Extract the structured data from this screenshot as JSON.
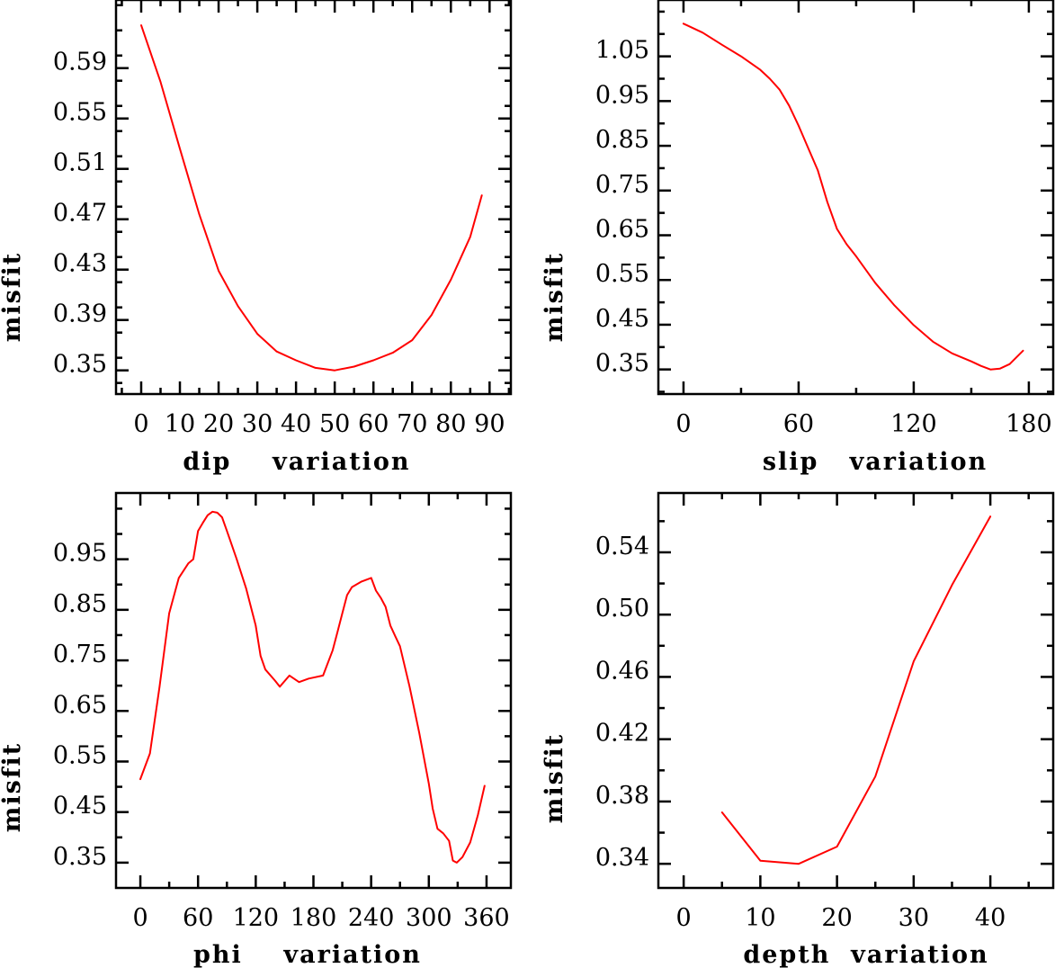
{
  "figure": {
    "description": "Four-panel misfit variation plots"
  },
  "chart_data": [
    {
      "type": "line",
      "id": "dip",
      "title": "",
      "xlabel": "dip    variation",
      "ylabel": "misfit",
      "xlim": [
        -6.5,
        95.5
      ],
      "ylim": [
        0.3312,
        0.6441
      ],
      "xticks": [
        0,
        10,
        20,
        30,
        40,
        50,
        60,
        70,
        80,
        90
      ],
      "xtick_labels": [
        "0",
        "10",
        "20",
        "30",
        "40",
        "50",
        "60",
        "70",
        "80",
        "90"
      ],
      "xminor_step": 5,
      "yticks": [
        0.35,
        0.39,
        0.43,
        0.47,
        0.51,
        0.55,
        0.59
      ],
      "ytick_labels": [
        "0.35",
        "0.39",
        "0.43",
        "0.47",
        "0.51",
        "0.55",
        "0.59"
      ],
      "yminor_step": 0.02,
      "grid": false,
      "series": [
        {
          "name": "misfit",
          "color": "#ff0000",
          "x": [
            0,
            5,
            10,
            15,
            20,
            25,
            30,
            35,
            40,
            45,
            50,
            55,
            60,
            65,
            70,
            75,
            80,
            85,
            88
          ],
          "y": [
            0.624,
            0.579,
            0.526,
            0.474,
            0.429,
            0.401,
            0.379,
            0.365,
            0.358,
            0.352,
            0.35,
            0.353,
            0.358,
            0.364,
            0.374,
            0.394,
            0.422,
            0.456,
            0.489
          ]
        }
      ]
    },
    {
      "type": "line",
      "id": "slip",
      "title": "",
      "xlabel": "slip   variation",
      "ylabel": "misfit",
      "xlim": [
        -13.1,
        192.7
      ],
      "ylim": [
        0.295,
        1.176
      ],
      "xticks": [
        0,
        60,
        120,
        180
      ],
      "xtick_labels": [
        "0",
        "60",
        "120",
        "180"
      ],
      "xminor_step": 30,
      "yticks": [
        0.35,
        0.45,
        0.55,
        0.65,
        0.75,
        0.85,
        0.95,
        1.05
      ],
      "ytick_labels": [
        "0.35",
        "0.45",
        "0.55",
        "0.65",
        "0.75",
        "0.85",
        "0.95",
        "1.05"
      ],
      "yminor_step": 0.05,
      "grid": false,
      "series": [
        {
          "name": "misfit",
          "color": "#ff0000",
          "x": [
            0,
            10,
            20,
            30,
            40,
            45,
            50,
            55,
            60,
            65,
            70,
            75,
            80,
            85,
            90,
            100,
            110,
            120,
            130,
            140,
            150,
            155,
            160,
            165,
            170,
            177
          ],
          "y": [
            1.123,
            1.103,
            1.076,
            1.05,
            1.02,
            1.0,
            0.976,
            0.94,
            0.895,
            0.845,
            0.795,
            0.724,
            0.664,
            0.63,
            0.603,
            0.543,
            0.493,
            0.449,
            0.412,
            0.386,
            0.368,
            0.358,
            0.35,
            0.352,
            0.362,
            0.392
          ]
        }
      ]
    },
    {
      "type": "line",
      "id": "phi",
      "title": "",
      "xlabel": "phi    variation",
      "ylabel": "misfit",
      "xlim": [
        -25.3,
        385.3
      ],
      "ylim": [
        0.3,
        1.081
      ],
      "xticks": [
        0,
        60,
        120,
        180,
        240,
        300,
        360
      ],
      "xtick_labels": [
        "0",
        "60",
        "120",
        "180",
        "240",
        "300",
        "360"
      ],
      "xminor_step": 30,
      "yticks": [
        0.35,
        0.45,
        0.55,
        0.65,
        0.75,
        0.85,
        0.95
      ],
      "ytick_labels": [
        "0.35",
        "0.45",
        "0.55",
        "0.65",
        "0.75",
        "0.85",
        "0.95"
      ],
      "yminor_step": 0.05,
      "grid": false,
      "series": [
        {
          "name": "misfit",
          "color": "#ff0000",
          "x": [
            0,
            10,
            20,
            30,
            40,
            50,
            55,
            60,
            65,
            70,
            75,
            80,
            85,
            90,
            100,
            110,
            120,
            125,
            130,
            140,
            145,
            155,
            165,
            175,
            180,
            190,
            200,
            205,
            210,
            215,
            220,
            230,
            240,
            245,
            250,
            255,
            260,
            265,
            270,
            280,
            290,
            300,
            304,
            309,
            315,
            321,
            325,
            329,
            335,
            343,
            351,
            358
          ],
          "y": [
            0.515,
            0.566,
            0.698,
            0.843,
            0.913,
            0.942,
            0.95,
            1.006,
            1.022,
            1.037,
            1.044,
            1.042,
            1.033,
            1.006,
            0.951,
            0.892,
            0.819,
            0.759,
            0.732,
            0.71,
            0.698,
            0.72,
            0.707,
            0.714,
            0.716,
            0.72,
            0.77,
            0.806,
            0.843,
            0.879,
            0.895,
            0.906,
            0.913,
            0.888,
            0.874,
            0.856,
            0.819,
            0.798,
            0.778,
            0.698,
            0.607,
            0.506,
            0.457,
            0.417,
            0.408,
            0.393,
            0.354,
            0.35,
            0.361,
            0.39,
            0.444,
            0.502
          ]
        }
      ]
    },
    {
      "type": "line",
      "id": "depth",
      "title": "",
      "xlabel": "depth  variation",
      "ylabel": "misfit",
      "xlim": [
        -3.3,
        48.2
      ],
      "ylim": [
        0.3245,
        0.5781
      ],
      "xticks": [
        0,
        10,
        20,
        30,
        40
      ],
      "xtick_labels": [
        "0",
        "10",
        "20",
        "30",
        "40"
      ],
      "xminor_step": 5,
      "yticks": [
        0.34,
        0.38,
        0.42,
        0.46,
        0.5,
        0.54
      ],
      "ytick_labels": [
        "0.34",
        "0.38",
        "0.42",
        "0.46",
        "0.50",
        "0.54"
      ],
      "yminor_step": 0.02,
      "grid": false,
      "series": [
        {
          "name": "misfit",
          "color": "#ff0000",
          "x": [
            5,
            10,
            15,
            20,
            25,
            30,
            35,
            40
          ],
          "y": [
            0.373,
            0.342,
            0.34,
            0.351,
            0.396,
            0.47,
            0.519,
            0.563
          ]
        }
      ]
    }
  ]
}
